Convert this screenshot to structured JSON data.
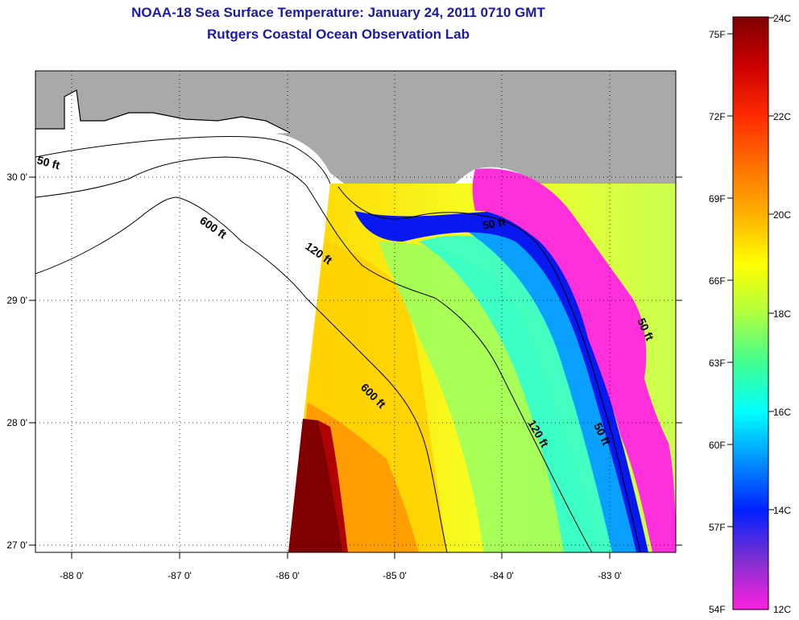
{
  "title": "NOAA-18 Sea Surface Temperature:  January 24, 2011 0710 GMT",
  "subtitle": "Rutgers Coastal Ocean Observation Lab",
  "map": {
    "lon_ticks": [
      "-88 0'",
      "-87 0'",
      "-86 0'",
      "-85 0'",
      "-84 0'",
      "-83 0'"
    ],
    "lat_ticks": [
      "30 0'",
      "29 0'",
      "28 0'",
      "27 0'"
    ],
    "contour_labels": [
      "50 ft",
      "600 ft",
      "120 ft",
      "600 ft",
      "120 ft",
      "50 ft",
      "50 ft",
      "50 ft"
    ],
    "colors": {
      "land": "#a9a9a9",
      "no_data": "#ffffff",
      "grid": "#000000"
    }
  },
  "colorbar": {
    "fahrenheit_labels": [
      "75F",
      "72F",
      "69F",
      "66F",
      "63F",
      "60F",
      "57F",
      "54F"
    ],
    "celsius_labels": [
      "24C",
      "22C",
      "20C",
      "18C",
      "16C",
      "14C",
      "12C"
    ],
    "gradient_colors": [
      "#800000",
      "#cc0000",
      "#ff2a00",
      "#ff7000",
      "#ffb000",
      "#ffff00",
      "#b0ff40",
      "#40ff90",
      "#00ffff",
      "#0090ff",
      "#0020ff",
      "#8030d0",
      "#ff20e0"
    ]
  }
}
